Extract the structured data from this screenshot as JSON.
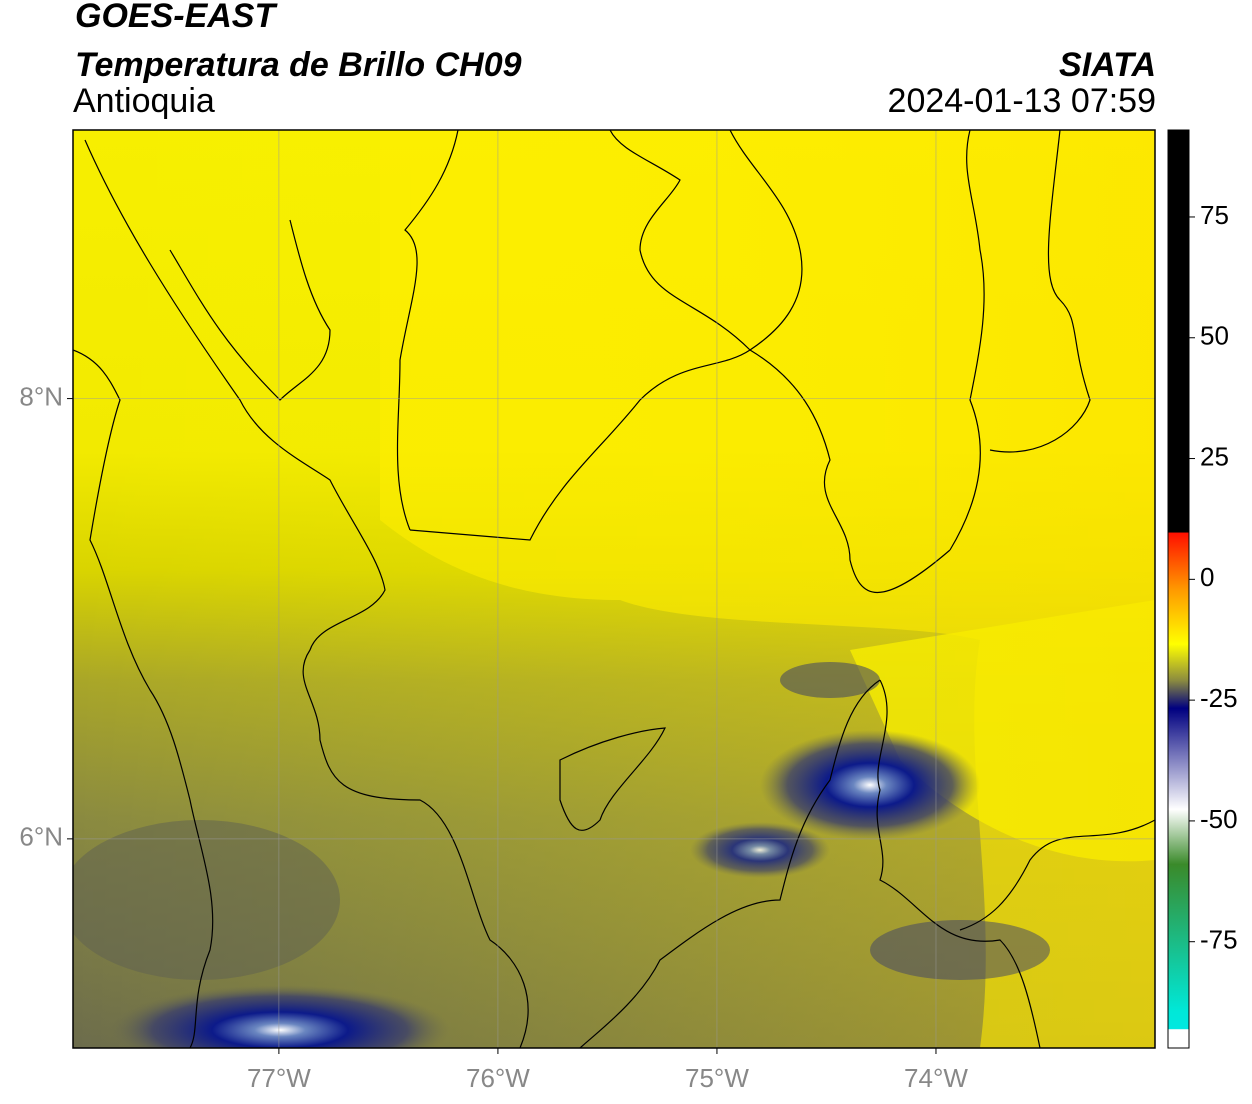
{
  "header": {
    "title": "GOES-EAST",
    "subtitle": "Temperatura de Brillo CH09",
    "region": "Antioquia",
    "source": "SIATA",
    "datetime": "2024-01-13 07:59"
  },
  "map": {
    "lonlim": [
      -77.94,
      -73.0
    ],
    "latlim": [
      5.05,
      9.22
    ],
    "lon_ticks": [
      {
        "value": -77,
        "label": "77°W"
      },
      {
        "value": -76,
        "label": "76°W"
      },
      {
        "value": -75,
        "label": "75°W"
      },
      {
        "value": -74,
        "label": "74°W"
      }
    ],
    "lat_ticks": [
      {
        "value": 8,
        "label": "8°N"
      },
      {
        "value": 6,
        "label": "6°N"
      }
    ]
  },
  "colorbar": {
    "lim": [
      -97,
      93
    ],
    "ticks": [
      75,
      50,
      25,
      0,
      -25,
      -50,
      -75
    ]
  }
}
